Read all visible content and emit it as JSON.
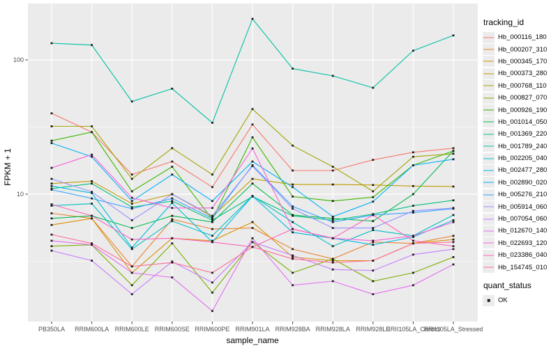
{
  "chart_data": {
    "type": "line",
    "xlabel": "sample_name",
    "ylabel": "FPKM + 1",
    "y_scale": "log10",
    "y_ticks": [
      {
        "value": 10,
        "label": "10"
      },
      {
        "value": 100,
        "label": "100"
      }
    ],
    "y_minor_ticks": [
      3.162,
      31.62,
      316.2
    ],
    "ylim": [
      1.1,
      260
    ],
    "grid": true,
    "legend_position": "right",
    "legend_title": "tracking_id",
    "legend2_title": "quant_status",
    "legend2_items": [
      {
        "label": "OK",
        "marker": "black-square"
      }
    ],
    "marker": "black-square",
    "x_categories": [
      "PB350LA",
      "RRIM600LA",
      "RRIM600LE",
      "RRIM600SE",
      "RRIM600PE",
      "RRIM901LA",
      "RRIM928BA",
      "RRIM928LA",
      "RRIM928LE",
      "RRII105LA_Control",
      "RRII105LA_Stressed"
    ],
    "series": [
      {
        "name": "Hb_000116_180",
        "color": "#F8766D",
        "values": [
          40,
          29,
          14,
          17.5,
          11.3,
          33,
          15,
          15,
          18,
          20.5,
          22
        ]
      },
      {
        "name": "Hb_000207_310",
        "color": "#EA8331",
        "values": [
          7.2,
          6.6,
          2.9,
          6.5,
          5.5,
          5.6,
          3.9,
          3.3,
          4.4,
          4.3,
          4.9
        ]
      },
      {
        "name": "Hb_000345_170",
        "color": "#D89000",
        "values": [
          5.9,
          6.6,
          2.6,
          4.7,
          4.5,
          6.2,
          3.4,
          3.2,
          3.2,
          4.3,
          4.6
        ]
      },
      {
        "name": "Hb_000373_280",
        "color": "#C09B00",
        "values": [
          12,
          12.5,
          8.5,
          10,
          6.8,
          13,
          11.8,
          11.8,
          11.7,
          11.5,
          11.4
        ]
      },
      {
        "name": "Hb_000768_110",
        "color": "#A3A500",
        "values": [
          32,
          32,
          13,
          22,
          14,
          43,
          23,
          16,
          10.5,
          19,
          20
        ]
      },
      {
        "name": "Hb_000827_070",
        "color": "#7CAE00",
        "values": [
          4.1,
          4.2,
          2.1,
          4.3,
          1.85,
          4.4,
          2.6,
          3.3,
          2.25,
          2.6,
          3.4
        ]
      },
      {
        "name": "Hb_000926_190",
        "color": "#39B600",
        "values": [
          25,
          29,
          10.5,
          16,
          6.5,
          26.5,
          9.6,
          8.9,
          9.5,
          16.4,
          21
        ]
      },
      {
        "name": "Hb_001014_050",
        "color": "#00BB4E",
        "values": [
          6.6,
          6.9,
          5.6,
          6.9,
          6.2,
          12,
          7,
          6.6,
          6.3,
          10,
          21
        ]
      },
      {
        "name": "Hb_001369_220",
        "color": "#00BF7D",
        "values": [
          11,
          12,
          8,
          8.9,
          6.4,
          9.6,
          6.9,
          6.4,
          7.1,
          8.2,
          9
        ]
      },
      {
        "name": "Hb_001789_240",
        "color": "#00C1A3",
        "values": [
          133,
          129,
          49,
          61,
          34,
          202,
          86,
          76,
          62,
          117,
          152
        ]
      },
      {
        "name": "Hb_002205_040",
        "color": "#00BFC4",
        "values": [
          8.2,
          8.5,
          3.9,
          6.3,
          4.9,
          9.7,
          6.2,
          4.1,
          5.4,
          4.9,
          7
        ]
      },
      {
        "name": "Hb_002477_280",
        "color": "#00BAE0",
        "values": [
          11.5,
          10.2,
          4,
          8.6,
          4.4,
          9.7,
          5.2,
          4.7,
          4.2,
          4.8,
          6.4
        ]
      },
      {
        "name": "Hb_002890_020",
        "color": "#00B0F6",
        "values": [
          24,
          19,
          8.9,
          14,
          8.9,
          17.5,
          11.3,
          6.8,
          8.8,
          16.4,
          18.2
        ]
      },
      {
        "name": "Hb_005276_210",
        "color": "#35A2FF",
        "values": [
          10.8,
          9.3,
          7.8,
          9.3,
          6.6,
          16.4,
          8.1,
          6.2,
          7,
          7.3,
          7.8
        ]
      },
      {
        "name": "Hb_005914_060",
        "color": "#9590FF",
        "values": [
          13,
          10.4,
          6.4,
          10,
          6.9,
          16.2,
          7.8,
          5.6,
          5.6,
          7.5,
          7.9
        ]
      },
      {
        "name": "Hb_007054_060",
        "color": "#C77CFF",
        "values": [
          3.8,
          3.2,
          1.8,
          3.15,
          2.2,
          4.4,
          3.5,
          2.75,
          2.7,
          3.55,
          3.9
        ]
      },
      {
        "name": "Hb_012670_140",
        "color": "#E76BF3",
        "values": [
          4.5,
          4.2,
          2.6,
          2.4,
          1.35,
          4.7,
          2.1,
          2.25,
          1.8,
          2.1,
          3
        ]
      },
      {
        "name": "Hb_022693_120",
        "color": "#FA62DB",
        "values": [
          15.7,
          19.7,
          9.4,
          7.9,
          7.9,
          21.9,
          5.5,
          4.7,
          4.5,
          4.9,
          6.2
        ]
      },
      {
        "name": "Hb_023386_040",
        "color": "#FF62BC",
        "values": [
          8.4,
          6.9,
          4.6,
          4.7,
          4.4,
          4.05,
          5.5,
          4.7,
          7,
          4.5,
          4.1
        ]
      },
      {
        "name": "Hb_154745_010",
        "color": "#FF6A98",
        "values": [
          5,
          4.3,
          2.9,
          3.1,
          2.6,
          4.05,
          3.3,
          3.1,
          3.2,
          4.3,
          4.4
        ]
      }
    ]
  },
  "colors": {
    "panel_background": "#EBEBEB",
    "grid_major": "#FFFFFF",
    "grid_minor": "#FFFFFF",
    "axis_text": "#4D4D4D",
    "axis_title": "#000000",
    "tick_mark": "#333333",
    "point_marker": "#1A1A1A",
    "legend_key_background": "#ECECEC",
    "outer_background": "#FFFFFF"
  }
}
